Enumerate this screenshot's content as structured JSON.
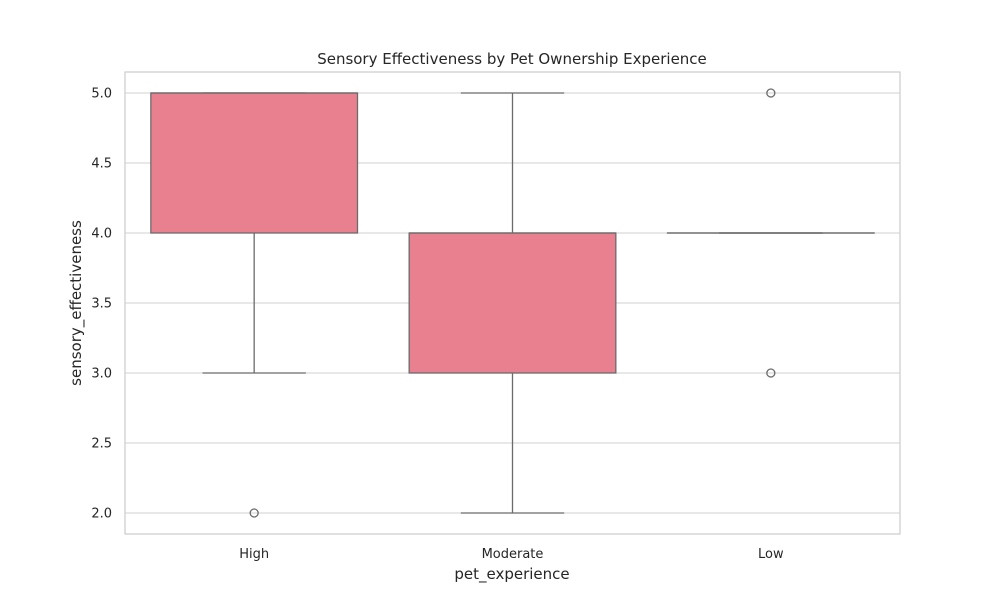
{
  "chart_data": {
    "type": "box",
    "title": "Sensory Effectiveness by Pet Ownership Experience",
    "xlabel": "pet_experience",
    "ylabel": "sensory_effectiveness",
    "categories": [
      "High",
      "Moderate",
      "Low"
    ],
    "ylim": [
      1.85,
      5.15
    ],
    "yticks": [
      "2.0",
      "2.5",
      "3.0",
      "3.5",
      "4.0",
      "4.5",
      "5.0"
    ],
    "grid": true,
    "box_color": "#e8808f",
    "edge_color": "#6b6b6b",
    "boxes": [
      {
        "category": "High",
        "whisker_low": 3.0,
        "q1": 4.0,
        "median": 5.0,
        "q3": 5.0,
        "whisker_high": 5.0,
        "outliers": [
          2.0
        ]
      },
      {
        "category": "Moderate",
        "whisker_low": 2.0,
        "q1": 3.0,
        "median": 4.0,
        "q3": 4.0,
        "whisker_high": 5.0,
        "outliers": []
      },
      {
        "category": "Low",
        "whisker_low": 4.0,
        "q1": 4.0,
        "median": 4.0,
        "q3": 4.0,
        "whisker_high": 4.0,
        "outliers": [
          5.0,
          3.0
        ]
      }
    ]
  }
}
